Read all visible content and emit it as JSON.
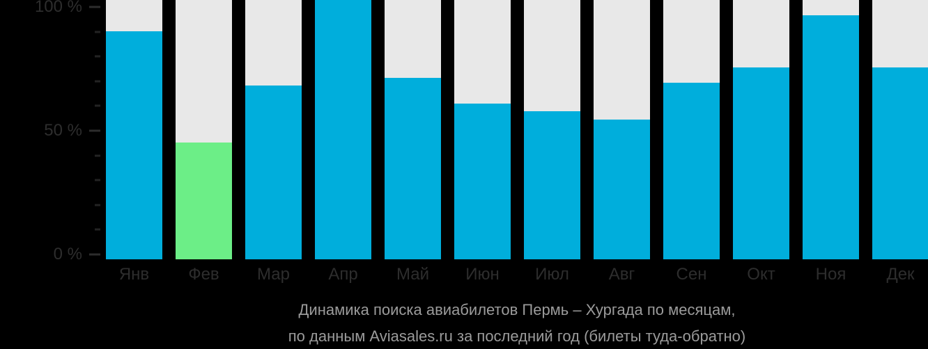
{
  "chart_data": {
    "type": "bar",
    "title": "Динамика поиска авиабилетов Пермь – Хургада по месяцам,",
    "subtitle": "по данным Aviasales.ru за последний год (билеты туда-обратно)",
    "categories": [
      "Янв",
      "Фев",
      "Мар",
      "Апр",
      "Май",
      "Июн",
      "Июл",
      "Авг",
      "Сен",
      "Окт",
      "Ноя",
      "Дек"
    ],
    "values": [
      88,
      45,
      67,
      100,
      70,
      60,
      57,
      54,
      68,
      74,
      94,
      74
    ],
    "unit": "%",
    "ylim": [
      0,
      100
    ],
    "y_tick_labels": [
      "100 %",
      "50 %",
      "0 %"
    ],
    "y_tick_values": [
      100,
      50,
      0
    ],
    "minor_tick_step": 10,
    "grid": false,
    "legend": "none",
    "highlight_index": 1,
    "colors": {
      "bar": "#00AEDC",
      "highlight": "#6CEE87",
      "track": "#E8E8E8",
      "background": "#000000",
      "axis_text": "#2D2D2D",
      "caption_text": "#9B9B9B"
    }
  }
}
